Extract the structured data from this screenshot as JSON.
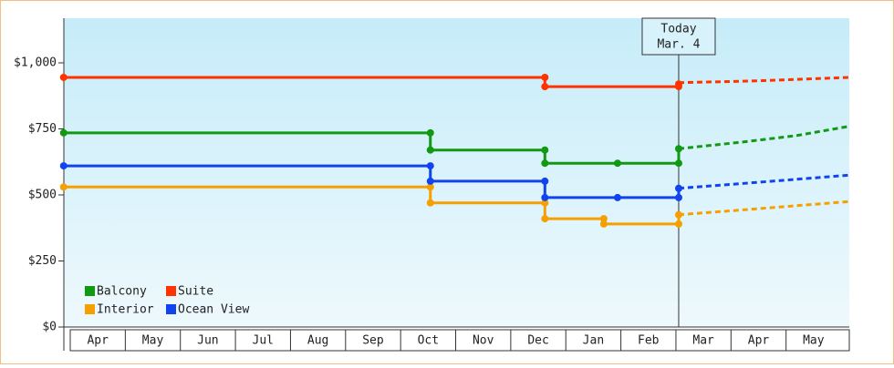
{
  "chart_data": {
    "type": "step-line",
    "xlim": [
      -0.12,
      14.15
    ],
    "ylim": [
      0,
      1169
    ],
    "yticks": [
      {
        "value": 0,
        "label": "$0"
      },
      {
        "value": 250,
        "label": "$250"
      },
      {
        "value": 500,
        "label": "$500"
      },
      {
        "value": 750,
        "label": "$750"
      },
      {
        "value": 1000,
        "label": "$1,000"
      }
    ],
    "categories": [
      "Apr",
      "May",
      "Jun",
      "Jul",
      "Aug",
      "Sep",
      "Oct",
      "Nov",
      "Dec",
      "Jan",
      "Feb",
      "Mar",
      "Apr",
      "May"
    ],
    "today": {
      "x": 11.05,
      "label": [
        "Today",
        "Mar. 4"
      ]
    },
    "series": [
      {
        "name": "Balcony",
        "color": "#119911",
        "x": [
          -0.12,
          6.54,
          6.54,
          8.62,
          8.62,
          9.94,
          11.05,
          11.05
        ],
        "values": [
          735,
          735,
          670,
          670,
          620,
          620,
          620,
          675
        ],
        "forecast": {
          "x": [
            11.05,
            12.2,
            13.2,
            14.15
          ],
          "values": [
            675,
            700,
            725,
            760
          ]
        }
      },
      {
        "name": "Suite",
        "color": "#ff3300",
        "x": [
          -0.12,
          8.62,
          8.62,
          11.05,
          11.05
        ],
        "values": [
          945,
          945,
          910,
          910,
          920
        ],
        "forecast": {
          "x": [
            11.05,
            12.5,
            14.15
          ],
          "values": [
            925,
            932,
            945
          ]
        }
      },
      {
        "name": "Interior",
        "color": "#f5a000",
        "x": [
          -0.12,
          6.54,
          6.54,
          8.62,
          8.62,
          9.69,
          9.69,
          11.05,
          11.05
        ],
        "values": [
          530,
          530,
          470,
          470,
          410,
          410,
          390,
          390,
          425
        ],
        "forecast": {
          "x": [
            11.05,
            12.5,
            14.15
          ],
          "values": [
            425,
            448,
            475
          ]
        }
      },
      {
        "name": "Ocean View",
        "color": "#1144ee",
        "x": [
          -0.12,
          6.54,
          6.54,
          8.62,
          8.62,
          9.94,
          11.05,
          11.05
        ],
        "values": [
          610,
          610,
          552,
          552,
          490,
          490,
          490,
          525
        ],
        "forecast": {
          "x": [
            11.05,
            12.5,
            14.15
          ],
          "values": [
            525,
            548,
            575
          ]
        }
      }
    ]
  }
}
